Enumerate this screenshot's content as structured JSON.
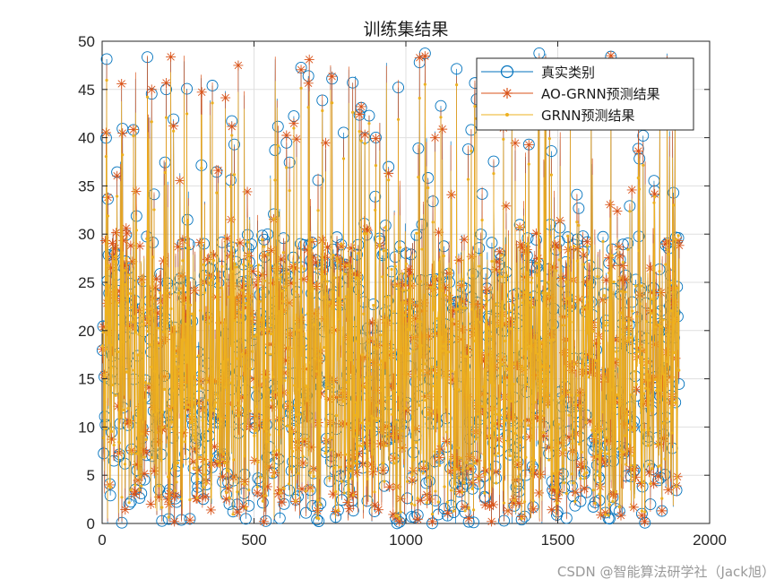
{
  "chart_data": {
    "type": "line",
    "title": "训练集结果",
    "xlabel": "",
    "ylabel": "",
    "xlim": [
      0,
      2000
    ],
    "ylim": [
      0,
      50
    ],
    "x_ticks": [
      0,
      500,
      1000,
      1500,
      2000
    ],
    "y_ticks": [
      0,
      5,
      10,
      15,
      20,
      25,
      30,
      35,
      40,
      45,
      50
    ],
    "grid": true,
    "legend_position": "top-right",
    "n_points": 1900,
    "series": [
      {
        "name": "真实类别",
        "marker": "circle",
        "color": "#0072bd"
      },
      {
        "name": "AO-GRNN预测结果",
        "marker": "asterisk",
        "color": "#d95319"
      },
      {
        "name": "GRNN预测结果",
        "marker": "dot",
        "color": "#edb120"
      }
    ]
  },
  "watermark": "CSDN @智能算法研学社（Jack旭）"
}
